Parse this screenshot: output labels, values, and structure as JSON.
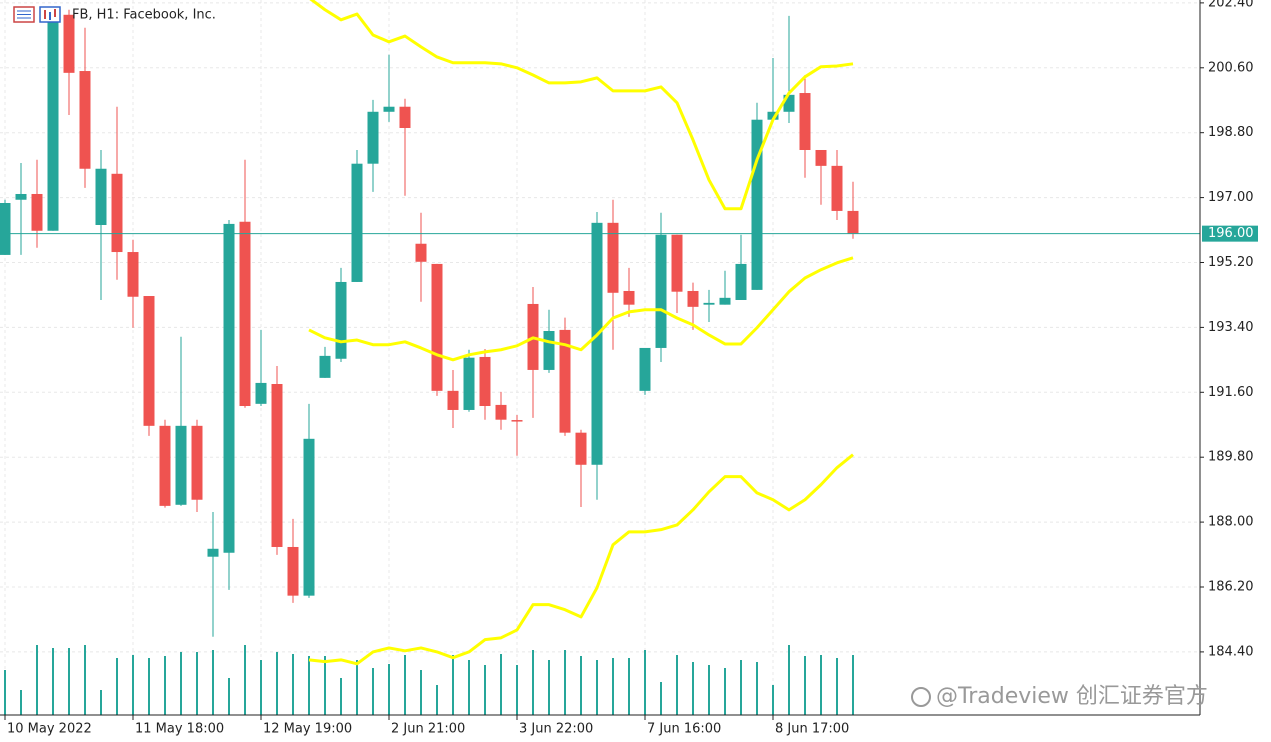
{
  "chart_data": {
    "type": "candlestick",
    "title": "FB, H1:  Facebook, Inc.",
    "watermark": "@Tradeview 创汇证券官方",
    "up_color": "#26a69a",
    "down_color": "#ef5350",
    "band_color": "#ffff00",
    "volume_color": "#26a69a",
    "grid": true,
    "ylim": [
      182.65,
      202.48
    ],
    "yticks": [
      {
        "value": 202.4,
        "label": "202.40"
      },
      {
        "value": 200.6,
        "label": "200.60"
      },
      {
        "value": 198.8,
        "label": "198.80"
      },
      {
        "value": 197,
        "label": "197.00"
      },
      {
        "value": 195.2,
        "label": "195.20"
      },
      {
        "value": 193.4,
        "label": "193.40"
      },
      {
        "value": 191.6,
        "label": "191.60"
      },
      {
        "value": 189.8,
        "label": "189.80"
      },
      {
        "value": 188,
        "label": "188.00"
      },
      {
        "value": 186.2,
        "label": "186.20"
      },
      {
        "value": 184.4,
        "label": "184.40"
      }
    ],
    "current_price": {
      "value": 196,
      "label": "196.00"
    },
    "categories": [
      "10 May 2022",
      null,
      null,
      null,
      null,
      null,
      null,
      null,
      "11 May 18:00",
      null,
      null,
      null,
      null,
      null,
      null,
      null,
      "12 May 19:00",
      null,
      null,
      null,
      null,
      null,
      null,
      null,
      "2 Jun 21:00",
      null,
      null,
      null,
      null,
      null,
      null,
      null,
      "3 Jun 22:00",
      null,
      null,
      null,
      null,
      null,
      null,
      null,
      "7 Jun 16:00",
      null,
      null,
      null,
      null,
      null,
      null,
      null,
      "8 Jun 17:00",
      null,
      null,
      null,
      null,
      null
    ],
    "open": [
      195.41,
      196.94,
      197.1,
      196.08,
      202.07,
      200.51,
      196.24,
      197.66,
      195.49,
      194.27,
      190.67,
      188.48,
      190.67,
      187.04,
      187.15,
      196.33,
      191.28,
      191.83,
      187.31,
      185.96,
      192.0,
      192.53,
      194.66,
      197.94,
      199.38,
      199.52,
      195.72,
      195.16,
      191.64,
      191.11,
      192.58,
      191.25,
      190.83,
      194.05,
      192.22,
      193.33,
      190.48,
      189.59,
      196.3,
      194.41,
      191.64,
      192.83,
      195.97,
      194.41,
      194.03,
      194.03,
      194.16,
      194.44,
      199.16,
      199.38,
      199.9,
      198.32,
      197.88,
      196.63
    ],
    "high": [
      196.94,
      197.96,
      198.05,
      202.21,
      202.21,
      201.71,
      198.32,
      199.52,
      195.83,
      194.27,
      190.84,
      193.14,
      190.84,
      188.28,
      196.38,
      198.05,
      193.33,
      192.33,
      188.09,
      191.28,
      192.86,
      195.05,
      198.32,
      199.71,
      200.96,
      199.74,
      196.58,
      195.16,
      192.22,
      192.78,
      192.8,
      191.61,
      190.97,
      194.52,
      193.89,
      193.67,
      190.56,
      196.6,
      196.94,
      195.05,
      192.83,
      196.58,
      195.97,
      194.64,
      194.44,
      194.97,
      195.97,
      199.63,
      200.87,
      202.04,
      200.4,
      198.32,
      198.32,
      197.44
    ],
    "low": [
      195.41,
      195.41,
      195.61,
      196.08,
      199.29,
      197.27,
      194.16,
      194.72,
      193.39,
      190.39,
      188.4,
      188.45,
      188.28,
      184.82,
      186.12,
      191.17,
      191.22,
      187.09,
      185.76,
      185.9,
      192.0,
      192.44,
      194.66,
      197.16,
      199.1,
      197.05,
      194.11,
      191.5,
      190.61,
      191.06,
      190.84,
      190.56,
      189.84,
      190.89,
      192.14,
      190.39,
      188.42,
      188.62,
      192.78,
      193.69,
      191.53,
      192.44,
      193.8,
      193.33,
      193.55,
      194.03,
      194.16,
      194.44,
      199.1,
      199.07,
      197.55,
      196.8,
      196.38,
      195.86
    ],
    "close": [
      196.85,
      197.1,
      196.08,
      201.98,
      200.46,
      197.8,
      197.8,
      195.49,
      194.25,
      190.67,
      188.45,
      190.67,
      188.62,
      187.26,
      196.27,
      191.22,
      191.86,
      187.31,
      185.96,
      190.31,
      192.61,
      194.66,
      197.94,
      199.38,
      199.52,
      198.93,
      195.22,
      191.64,
      191.11,
      192.56,
      191.22,
      190.84,
      190.8,
      192.22,
      193.3,
      190.48,
      189.59,
      196.3,
      194.36,
      194.03,
      192.83,
      195.97,
      194.39,
      193.97,
      194.08,
      194.22,
      195.16,
      199.16,
      199.38,
      199.85,
      198.32,
      197.88,
      196.63,
      196.0
    ],
    "volume": [
      45,
      25,
      70,
      67,
      67,
      70,
      25,
      57,
      60,
      57,
      59,
      63,
      63,
      65,
      37,
      70,
      55,
      63,
      61,
      59,
      59,
      37,
      55,
      47,
      51,
      60,
      45,
      30,
      60,
      55,
      50,
      61,
      50,
      65,
      55,
      65,
      59,
      55,
      57,
      57,
      65,
      33,
      60,
      53,
      50,
      47,
      55,
      53,
      30,
      70,
      59,
      60,
      57,
      60
    ],
    "bands": {
      "upper": [
        null,
        null,
        null,
        null,
        null,
        null,
        null,
        null,
        null,
        null,
        null,
        null,
        null,
        null,
        null,
        null,
        null,
        null,
        null,
        202.54,
        202.21,
        201.93,
        202.09,
        201.51,
        201.32,
        201.48,
        201.18,
        200.9,
        200.74,
        200.74,
        200.74,
        200.71,
        200.6,
        200.4,
        200.18,
        200.18,
        200.21,
        200.32,
        199.96,
        199.96,
        199.96,
        200.07,
        199.63,
        198.6,
        197.49,
        196.69,
        196.69,
        198.05,
        199.16,
        199.9,
        200.35,
        200.63,
        200.65,
        200.71
      ],
      "middle": [
        null,
        null,
        null,
        null,
        null,
        null,
        null,
        null,
        null,
        null,
        null,
        null,
        null,
        null,
        null,
        null,
        null,
        null,
        null,
        193.33,
        193.11,
        193.0,
        193.05,
        192.92,
        192.92,
        193.0,
        192.83,
        192.64,
        192.5,
        192.64,
        192.72,
        192.78,
        192.89,
        193.11,
        193.0,
        192.92,
        192.78,
        193.19,
        193.66,
        193.83,
        193.89,
        193.89,
        193.66,
        193.47,
        193.19,
        192.94,
        192.94,
        193.39,
        193.89,
        194.39,
        194.77,
        195.0,
        195.19,
        195.33
      ],
      "lower": [
        null,
        null,
        null,
        null,
        null,
        null,
        null,
        null,
        null,
        null,
        null,
        null,
        null,
        null,
        null,
        null,
        null,
        null,
        null,
        184.18,
        184.13,
        184.18,
        184.07,
        184.4,
        184.51,
        184.43,
        184.51,
        184.4,
        184.24,
        184.4,
        184.74,
        184.79,
        185.01,
        185.71,
        185.71,
        185.57,
        185.37,
        186.18,
        187.37,
        187.73,
        187.73,
        187.79,
        187.92,
        188.34,
        188.84,
        189.26,
        189.26,
        188.81,
        188.62,
        188.34,
        188.62,
        189.04,
        189.51,
        189.87
      ]
    }
  }
}
